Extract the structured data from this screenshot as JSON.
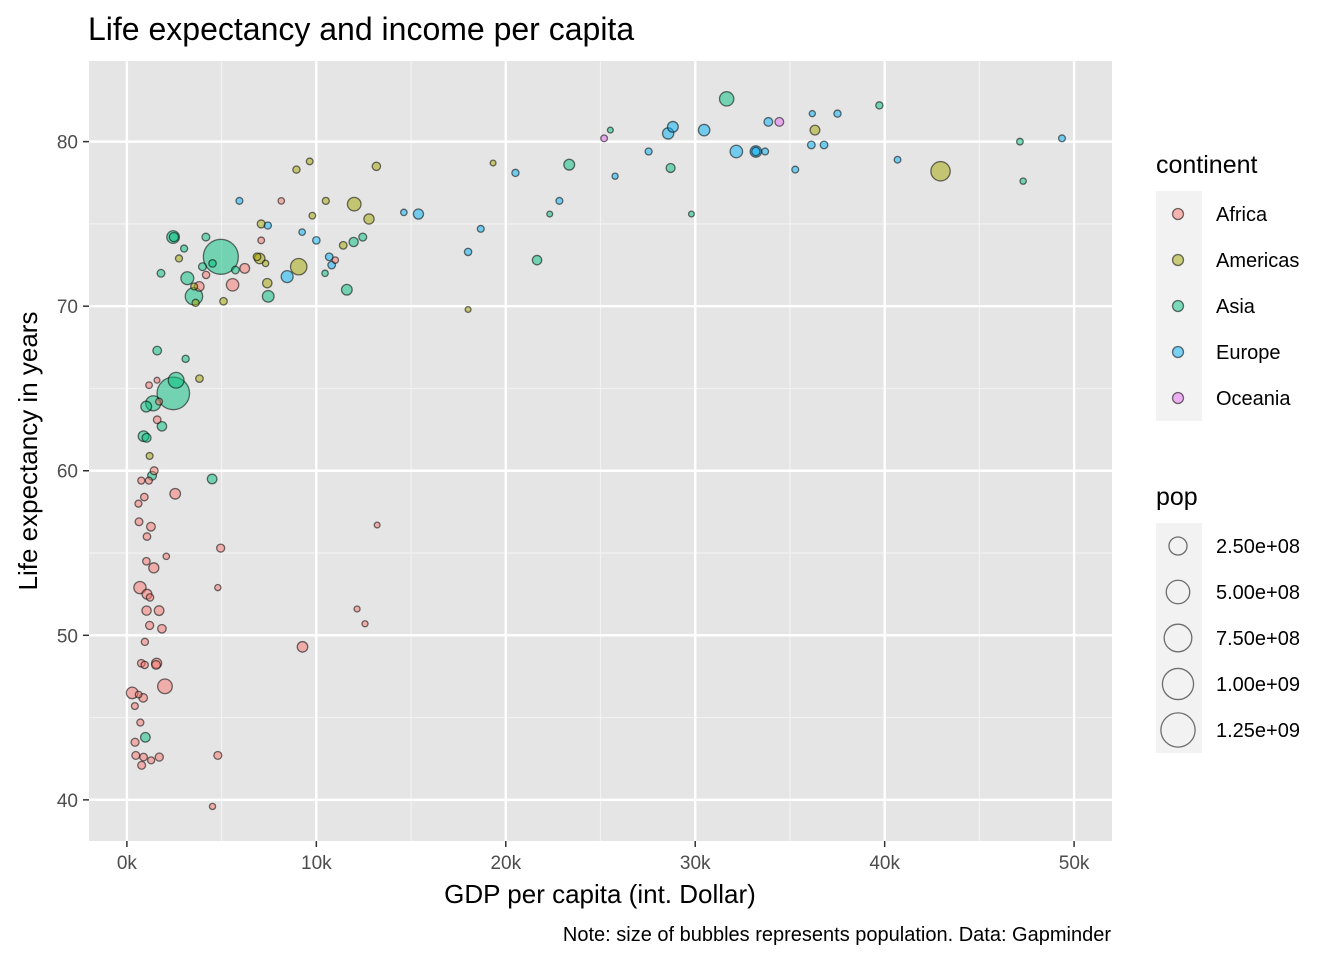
{
  "chart_data": {
    "type": "scatter",
    "title": "Life expectancy and income per capita",
    "xlabel": "GDP per capita (int. Dollar)",
    "ylabel": "Life expectancy in years",
    "caption": "Note: size of bubbles represents population. Data: Gapminder",
    "xlim": [
      -2000,
      52000
    ],
    "ylim": [
      37.5,
      84.9
    ],
    "x_ticks": [
      0,
      10000,
      20000,
      30000,
      40000,
      50000
    ],
    "x_tick_labels": [
      "0k",
      "10k",
      "20k",
      "30k",
      "40k",
      "50k"
    ],
    "y_ticks": [
      40,
      50,
      60,
      70,
      80
    ],
    "y_tick_labels": [
      "40",
      "50",
      "60",
      "70",
      "80"
    ],
    "grid": true,
    "panel_background": "#e5e5e5",
    "legend_continent": {
      "title": "continent",
      "entries": [
        {
          "label": "Africa",
          "color": "#F8766D"
        },
        {
          "label": "Americas",
          "color": "#A3A500"
        },
        {
          "label": "Asia",
          "color": "#00BF7D"
        },
        {
          "label": "Europe",
          "color": "#00B0F6"
        },
        {
          "label": "Oceania",
          "color": "#E76BF3"
        }
      ]
    },
    "legend_pop": {
      "title": "pop",
      "entries": [
        {
          "label": "2.50e+08",
          "value": 250000000
        },
        {
          "label": "5.00e+08",
          "value": 500000000
        },
        {
          "label": "7.50e+08",
          "value": 750000000
        },
        {
          "label": "1.00e+09",
          "value": 1000000000
        },
        {
          "label": "1.25e+09",
          "value": 1250000000
        }
      ]
    },
    "points": [
      {
        "x": 4960,
        "y": 73.0,
        "pop": 1318000000,
        "c": "Asia"
      },
      {
        "x": 2450,
        "y": 64.7,
        "pop": 1110000000,
        "c": "Asia"
      },
      {
        "x": 42950,
        "y": 78.2,
        "pop": 301000000,
        "c": "Americas"
      },
      {
        "x": 3540,
        "y": 70.6,
        "pop": 224000000,
        "c": "Asia"
      },
      {
        "x": 9070,
        "y": 72.4,
        "pop": 190000000,
        "c": "Americas"
      },
      {
        "x": 2600,
        "y": 65.5,
        "pop": 169000000,
        "c": "Asia"
      },
      {
        "x": 2010,
        "y": 46.9,
        "pop": 135000000,
        "c": "Africa"
      },
      {
        "x": 1390,
        "y": 64.1,
        "pop": 150000000,
        "c": "Asia"
      },
      {
        "x": 31660,
        "y": 82.6,
        "pop": 127000000,
        "c": "Asia"
      },
      {
        "x": 12000,
        "y": 76.2,
        "pop": 108000000,
        "c": "Americas"
      },
      {
        "x": 3190,
        "y": 71.7,
        "pop": 91000000,
        "c": "Asia"
      },
      {
        "x": 2440,
        "y": 74.2,
        "pop": 85000000,
        "c": "Asia"
      },
      {
        "x": 32170,
        "y": 79.4,
        "pop": 82000000,
        "c": "Europe"
      },
      {
        "x": 690,
        "y": 52.9,
        "pop": 76000000,
        "c": "Africa"
      },
      {
        "x": 5580,
        "y": 71.3,
        "pop": 80000000,
        "c": "Africa"
      },
      {
        "x": 8460,
        "y": 71.8,
        "pop": 71000000,
        "c": "Europe"
      },
      {
        "x": 7460,
        "y": 70.6,
        "pop": 65000000,
        "c": "Asia"
      },
      {
        "x": 30470,
        "y": 80.7,
        "pop": 61000000,
        "c": "Europe"
      },
      {
        "x": 33200,
        "y": 79.4,
        "pop": 60000000,
        "c": "Europe"
      },
      {
        "x": 28570,
        "y": 80.5,
        "pop": 58000000,
        "c": "Europe"
      },
      {
        "x": 11610,
        "y": 71.0,
        "pop": 47000000,
        "c": "Asia"
      },
      {
        "x": 2550,
        "y": 58.6,
        "pop": 46000000,
        "c": "Africa"
      },
      {
        "x": 280,
        "y": 46.5,
        "pop": 64000000,
        "c": "Africa"
      },
      {
        "x": 28820,
        "y": 80.9,
        "pop": 49000000,
        "c": "Europe"
      },
      {
        "x": 1020,
        "y": 63.9,
        "pop": 48000000,
        "c": "Asia"
      },
      {
        "x": 23350,
        "y": 78.6,
        "pop": 49000000,
        "c": "Asia"
      },
      {
        "x": 880,
        "y": 62.1,
        "pop": 47000000,
        "c": "Asia"
      },
      {
        "x": 1420,
        "y": 54.1,
        "pop": 38000000,
        "c": "Africa"
      },
      {
        "x": 12780,
        "y": 75.3,
        "pop": 40000000,
        "c": "Americas"
      },
      {
        "x": 9270,
        "y": 49.3,
        "pop": 44000000,
        "c": "Africa"
      },
      {
        "x": 7010,
        "y": 72.9,
        "pop": 44000000,
        "c": "Americas"
      },
      {
        "x": 1060,
        "y": 52.5,
        "pop": 35000000,
        "c": "Africa"
      },
      {
        "x": 1570,
        "y": 48.3,
        "pop": 38000000,
        "c": "Africa"
      },
      {
        "x": 36320,
        "y": 80.7,
        "pop": 33000000,
        "c": "Americas"
      },
      {
        "x": 15390,
        "y": 75.6,
        "pop": 38500000,
        "c": "Europe"
      },
      {
        "x": 6220,
        "y": 72.3,
        "pop": 33000000,
        "c": "Africa"
      },
      {
        "x": 4500,
        "y": 59.5,
        "pop": 31000000,
        "c": "Asia"
      },
      {
        "x": 3820,
        "y": 71.2,
        "pop": 31000000,
        "c": "Africa"
      },
      {
        "x": 1700,
        "y": 51.5,
        "pop": 31000000,
        "c": "Africa"
      },
      {
        "x": 1040,
        "y": 51.5,
        "pop": 27000000,
        "c": "Africa"
      },
      {
        "x": 2480,
        "y": 74.2,
        "pop": 26000000,
        "c": "Asia"
      },
      {
        "x": 11970,
        "y": 73.9,
        "pop": 26000000,
        "c": "Asia"
      },
      {
        "x": 7410,
        "y": 71.4,
        "pop": 28000000,
        "c": "Americas"
      },
      {
        "x": 1850,
        "y": 62.7,
        "pop": 28000000,
        "c": "Asia"
      },
      {
        "x": 21650,
        "y": 72.8,
        "pop": 28000000,
        "c": "Asia"
      },
      {
        "x": 28700,
        "y": 78.4,
        "pop": 23000000,
        "c": "Asia"
      },
      {
        "x": 1330,
        "y": 59.7,
        "pop": 22000000,
        "c": "Asia"
      },
      {
        "x": 1270,
        "y": 56.6,
        "pop": 20000000,
        "c": "Africa"
      },
      {
        "x": 975,
        "y": 43.8,
        "pop": 31000000,
        "c": "Asia"
      },
      {
        "x": 1040,
        "y": 62.0,
        "pop": 22000000,
        "c": "Asia"
      },
      {
        "x": 1850,
        "y": 50.4,
        "pop": 18000000,
        "c": "Africa"
      },
      {
        "x": 34440,
        "y": 81.2,
        "pop": 20400000,
        "c": "Oceania"
      },
      {
        "x": 33860,
        "y": 81.2,
        "pop": 20000000,
        "c": "Europe"
      },
      {
        "x": 1600,
        "y": 67.3,
        "pop": 20000000,
        "c": "Asia"
      },
      {
        "x": 1540,
        "y": 48.2,
        "pop": 20000000,
        "c": "Africa"
      },
      {
        "x": 1710,
        "y": 42.6,
        "pop": 14000000,
        "c": "Africa"
      },
      {
        "x": 860,
        "y": 46.2,
        "pop": 18000000,
        "c": "Africa"
      },
      {
        "x": 430,
        "y": 43.5,
        "pop": 13000000,
        "c": "Africa"
      },
      {
        "x": 1200,
        "y": 50.6,
        "pop": 14000000,
        "c": "Africa"
      },
      {
        "x": 4950,
        "y": 55.3,
        "pop": 13000000,
        "c": "Africa"
      },
      {
        "x": 780,
        "y": 42.1,
        "pop": 12000000,
        "c": "Africa"
      },
      {
        "x": 470,
        "y": 42.7,
        "pop": 12000000,
        "c": "Africa"
      },
      {
        "x": 1800,
        "y": 72.0,
        "pop": 11000000,
        "c": "Asia"
      },
      {
        "x": 33200,
        "y": 79.4,
        "pop": 16600000,
        "c": "Europe"
      },
      {
        "x": 36130,
        "y": 79.8,
        "pop": 10400000,
        "c": "Europe"
      },
      {
        "x": 10500,
        "y": 76.4,
        "pop": 6000000,
        "c": "Americas"
      },
      {
        "x": 13170,
        "y": 78.5,
        "pop": 16000000,
        "c": "Americas"
      },
      {
        "x": 5730,
        "y": 72.2,
        "pop": 10000000,
        "c": "Asia"
      },
      {
        "x": 7090,
        "y": 75.0,
        "pop": 13000000,
        "c": "Americas"
      },
      {
        "x": 6870,
        "y": 73.0,
        "pop": 10000000,
        "c": "Americas"
      },
      {
        "x": 5100,
        "y": 70.3,
        "pop": 9000000,
        "c": "Americas"
      },
      {
        "x": 3830,
        "y": 65.6,
        "pop": 9000000,
        "c": "Americas"
      },
      {
        "x": 3100,
        "y": 66.8,
        "pop": 7000000,
        "c": "Asia"
      },
      {
        "x": 12570,
        "y": 50.7,
        "pop": 1700000,
        "c": "Africa"
      },
      {
        "x": 12150,
        "y": 51.6,
        "pop": 1400000,
        "c": "Africa"
      },
      {
        "x": 13210,
        "y": 56.7,
        "pop": 900000,
        "c": "Africa"
      },
      {
        "x": 4800,
        "y": 52.9,
        "pop": 2000000,
        "c": "Africa"
      },
      {
        "x": 4800,
        "y": 42.7,
        "pop": 12400000,
        "c": "Africa"
      },
      {
        "x": 4520,
        "y": 39.6,
        "pop": 2000000,
        "c": "Africa"
      },
      {
        "x": 2080,
        "y": 54.8,
        "pop": 3000000,
        "c": "Africa"
      },
      {
        "x": 1440,
        "y": 60.0,
        "pop": 12000000,
        "c": "Africa"
      },
      {
        "x": 640,
        "y": 56.9,
        "pop": 11000000,
        "c": "Africa"
      },
      {
        "x": 1060,
        "y": 56.0,
        "pop": 9000000,
        "c": "Africa"
      },
      {
        "x": 1030,
        "y": 54.5,
        "pop": 9000000,
        "c": "Africa"
      },
      {
        "x": 610,
        "y": 58.0,
        "pop": 6000000,
        "c": "Africa"
      },
      {
        "x": 760,
        "y": 59.4,
        "pop": 6000000,
        "c": "Africa"
      },
      {
        "x": 920,
        "y": 58.4,
        "pop": 9000000,
        "c": "Africa"
      },
      {
        "x": 1160,
        "y": 59.4,
        "pop": 6000000,
        "c": "Africa"
      },
      {
        "x": 1600,
        "y": 63.1,
        "pop": 10000000,
        "c": "Africa"
      },
      {
        "x": 1700,
        "y": 64.2,
        "pop": 5000000,
        "c": "Africa"
      },
      {
        "x": 1590,
        "y": 65.5,
        "pop": 1000000,
        "c": "Africa"
      },
      {
        "x": 1170,
        "y": 65.2,
        "pop": 4000000,
        "c": "Africa"
      },
      {
        "x": 1200,
        "y": 60.9,
        "pop": 5000000,
        "c": "Americas"
      },
      {
        "x": 940,
        "y": 48.2,
        "pop": 8000000,
        "c": "Africa"
      },
      {
        "x": 760,
        "y": 48.3,
        "pop": 10000000,
        "c": "Africa"
      },
      {
        "x": 620,
        "y": 46.4,
        "pop": 4000000,
        "c": "Africa"
      },
      {
        "x": 420,
        "y": 45.7,
        "pop": 5000000,
        "c": "Africa"
      },
      {
        "x": 710,
        "y": 44.7,
        "pop": 6000000,
        "c": "Africa"
      },
      {
        "x": 880,
        "y": 42.6,
        "pop": 10000000,
        "c": "Africa"
      },
      {
        "x": 1220,
        "y": 52.3,
        "pop": 8000000,
        "c": "Africa"
      },
      {
        "x": 950,
        "y": 49.6,
        "pop": 7000000,
        "c": "Africa"
      },
      {
        "x": 1280,
        "y": 42.4,
        "pop": 6000000,
        "c": "Africa"
      },
      {
        "x": 3630,
        "y": 70.2,
        "pop": 7000000,
        "c": "Americas"
      },
      {
        "x": 3550,
        "y": 71.2,
        "pop": 5000000,
        "c": "Americas"
      },
      {
        "x": 4170,
        "y": 74.2,
        "pop": 11000000,
        "c": "Asia"
      },
      {
        "x": 3990,
        "y": 72.4,
        "pop": 12000000,
        "c": "Asia"
      },
      {
        "x": 4180,
        "y": 71.9,
        "pop": 8000000,
        "c": "Africa"
      },
      {
        "x": 4520,
        "y": 72.6,
        "pop": 9000000,
        "c": "Asia"
      },
      {
        "x": 2750,
        "y": 72.9,
        "pop": 6000000,
        "c": "Americas"
      },
      {
        "x": 3020,
        "y": 73.5,
        "pop": 6000000,
        "c": "Asia"
      },
      {
        "x": 5940,
        "y": 76.4,
        "pop": 5000000,
        "c": "Europe"
      },
      {
        "x": 7440,
        "y": 74.9,
        "pop": 7000000,
        "c": "Europe"
      },
      {
        "x": 7090,
        "y": 74.0,
        "pop": 4000000,
        "c": "Africa"
      },
      {
        "x": 8150,
        "y": 76.4,
        "pop": 3000000,
        "c": "Africa"
      },
      {
        "x": 7320,
        "y": 72.6,
        "pop": 3000000,
        "c": "Americas"
      },
      {
        "x": 8950,
        "y": 78.3,
        "pop": 7000000,
        "c": "Americas"
      },
      {
        "x": 9650,
        "y": 78.8,
        "pop": 4000000,
        "c": "Americas"
      },
      {
        "x": 9790,
        "y": 75.5,
        "pop": 4000000,
        "c": "Americas"
      },
      {
        "x": 10000,
        "y": 74.0,
        "pop": 9000000,
        "c": "Europe"
      },
      {
        "x": 9250,
        "y": 74.5,
        "pop": 3500000,
        "c": "Europe"
      },
      {
        "x": 10680,
        "y": 73.0,
        "pop": 10000000,
        "c": "Europe"
      },
      {
        "x": 10810,
        "y": 72.5,
        "pop": 10000000,
        "c": "Europe"
      },
      {
        "x": 11000,
        "y": 72.8,
        "pop": 3000000,
        "c": "Africa"
      },
      {
        "x": 11420,
        "y": 73.7,
        "pop": 10000000,
        "c": "Americas"
      },
      {
        "x": 10460,
        "y": 72.0,
        "pop": 3000000,
        "c": "Asia"
      },
      {
        "x": 12450,
        "y": 74.2,
        "pop": 12000000,
        "c": "Asia"
      },
      {
        "x": 14620,
        "y": 75.7,
        "pop": 3000000,
        "c": "Europe"
      },
      {
        "x": 18010,
        "y": 73.3,
        "pop": 8000000,
        "c": "Europe"
      },
      {
        "x": 18010,
        "y": 69.8,
        "pop": 1000000,
        "c": "Americas"
      },
      {
        "x": 18680,
        "y": 74.7,
        "pop": 5000000,
        "c": "Europe"
      },
      {
        "x": 19330,
        "y": 78.7,
        "pop": 1000000,
        "c": "Americas"
      },
      {
        "x": 20510,
        "y": 78.1,
        "pop": 7000000,
        "c": "Europe"
      },
      {
        "x": 22320,
        "y": 75.6,
        "pop": 1000000,
        "c": "Asia"
      },
      {
        "x": 22830,
        "y": 76.4,
        "pop": 5000000,
        "c": "Europe"
      },
      {
        "x": 25190,
        "y": 80.2,
        "pop": 4100000,
        "c": "Oceania"
      },
      {
        "x": 25520,
        "y": 80.7,
        "pop": 1000000,
        "c": "Asia"
      },
      {
        "x": 25770,
        "y": 77.9,
        "pop": 2000000,
        "c": "Europe"
      },
      {
        "x": 27540,
        "y": 79.4,
        "pop": 6000000,
        "c": "Europe"
      },
      {
        "x": 29800,
        "y": 75.6,
        "pop": 1000000,
        "c": "Asia"
      },
      {
        "x": 33690,
        "y": 79.4,
        "pop": 5000000,
        "c": "Europe"
      },
      {
        "x": 35280,
        "y": 78.3,
        "pop": 5000000,
        "c": "Europe"
      },
      {
        "x": 36180,
        "y": 81.7,
        "pop": 2000000,
        "c": "Europe"
      },
      {
        "x": 36800,
        "y": 79.8,
        "pop": 10000000,
        "c": "Europe"
      },
      {
        "x": 37510,
        "y": 81.7,
        "pop": 7000000,
        "c": "Europe"
      },
      {
        "x": 39720,
        "y": 82.2,
        "pop": 7000000,
        "c": "Asia"
      },
      {
        "x": 40680,
        "y": 78.9,
        "pop": 4000000,
        "c": "Europe"
      },
      {
        "x": 47140,
        "y": 80.0,
        "pop": 4000000,
        "c": "Asia"
      },
      {
        "x": 47310,
        "y": 77.6,
        "pop": 2500000,
        "c": "Asia"
      },
      {
        "x": 49360,
        "y": 80.2,
        "pop": 4600000,
        "c": "Europe"
      }
    ]
  }
}
